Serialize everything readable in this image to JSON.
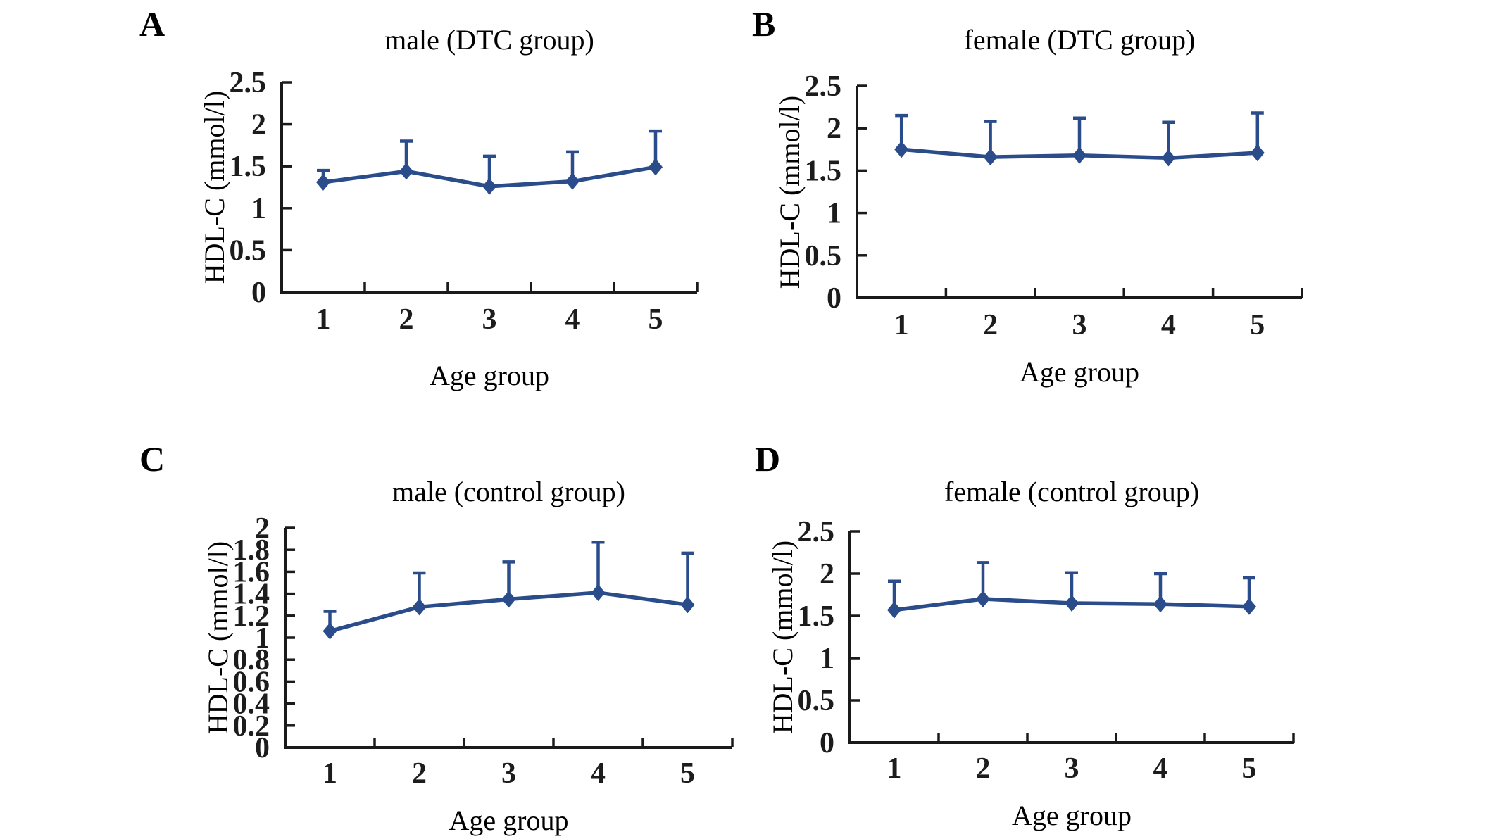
{
  "figure": {
    "background": "#ffffff",
    "line_color": "#2a4c8a",
    "axis_color": "#1a1a1a",
    "text_color": "#000000"
  },
  "chart_data": [
    {
      "id": "panel-a",
      "panel_label": "A",
      "type": "line",
      "title": "male (DTC group)",
      "xlabel": "Age group",
      "ylabel": "HDL-C (mmol/l)",
      "categories": [
        "1",
        "2",
        "3",
        "4",
        "5"
      ],
      "values": [
        1.31,
        1.44,
        1.26,
        1.32,
        1.49
      ],
      "error_up": [
        0.14,
        0.36,
        0.36,
        0.35,
        0.43
      ],
      "ylim": [
        0,
        2.5
      ],
      "yticks": [
        "0",
        "0.5",
        "1",
        "1.5",
        "2",
        "2.5"
      ],
      "marker": "diamond",
      "error_bars": "upper",
      "grid": false,
      "legend": "none",
      "line_color": "#2a4c8a"
    },
    {
      "id": "panel-b",
      "panel_label": "B",
      "type": "line",
      "title": "female (DTC group)",
      "xlabel": "Age group",
      "ylabel": "HDL-C (mmol/l)",
      "categories": [
        "1",
        "2",
        "3",
        "4",
        "5"
      ],
      "values": [
        1.75,
        1.66,
        1.68,
        1.65,
        1.71
      ],
      "error_up": [
        0.4,
        0.42,
        0.44,
        0.42,
        0.47
      ],
      "ylim": [
        0,
        2.5
      ],
      "yticks": [
        "0",
        "0.5",
        "1",
        "1.5",
        "2",
        "2.5"
      ],
      "marker": "diamond",
      "error_bars": "upper",
      "grid": false,
      "legend": "none",
      "line_color": "#2a4c8a"
    },
    {
      "id": "panel-c",
      "panel_label": "C",
      "type": "line",
      "title": "male (control group)",
      "xlabel": "Age group",
      "ylabel": "HDL-C (mmol/l)",
      "categories": [
        "1",
        "2",
        "3",
        "4",
        "5"
      ],
      "values": [
        1.06,
        1.28,
        1.35,
        1.41,
        1.3
      ],
      "error_up": [
        0.18,
        0.31,
        0.34,
        0.46,
        0.47
      ],
      "ylim": [
        0,
        2
      ],
      "yticks": [
        "0",
        "0.2",
        "0.4",
        "0.6",
        "0.8",
        "1",
        "1.2",
        "1.4",
        "1.6",
        "1.8",
        "2"
      ],
      "marker": "diamond",
      "error_bars": "upper",
      "grid": false,
      "legend": "none",
      "line_color": "#2a4c8a"
    },
    {
      "id": "panel-d",
      "panel_label": "D",
      "type": "line",
      "title": "female (control group)",
      "xlabel": "Age group",
      "ylabel": "HDL-C (mmol/l)",
      "categories": [
        "1",
        "2",
        "3",
        "4",
        "5"
      ],
      "values": [
        1.57,
        1.7,
        1.65,
        1.64,
        1.61
      ],
      "error_up": [
        0.34,
        0.43,
        0.36,
        0.36,
        0.34
      ],
      "ylim": [
        0,
        2.5
      ],
      "yticks": [
        "0",
        "0.5",
        "1",
        "1.5",
        "2",
        "2.5"
      ],
      "marker": "diamond",
      "error_bars": "upper",
      "grid": false,
      "legend": "none",
      "line_color": "#2a4c8a"
    }
  ]
}
